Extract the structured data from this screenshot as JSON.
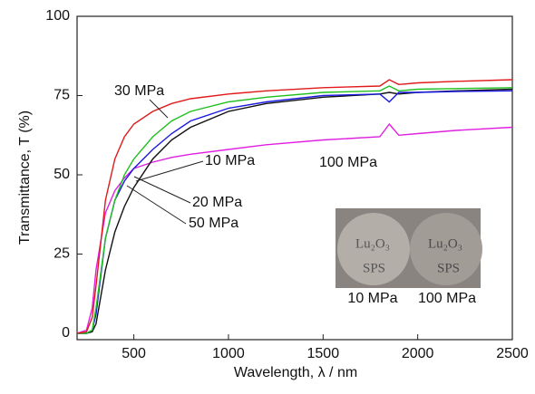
{
  "chart_data": {
    "type": "line",
    "xlabel": "Wavelength, λ / nm",
    "ylabel": "Transmittance, T (%)",
    "x": [
      200,
      250,
      280,
      300,
      350,
      400,
      450,
      500,
      600,
      700,
      800,
      1000,
      1200,
      1500,
      1800,
      1850,
      1900,
      2000,
      2200,
      2500
    ],
    "series": [
      {
        "name": "100 MPa",
        "color": "#e020e0",
        "values": [
          0,
          1,
          8,
          20,
          38,
          45,
          49,
          52,
          54,
          55.5,
          56.5,
          58,
          59.5,
          61,
          62,
          66,
          62.5,
          63,
          64,
          65
        ]
      },
      {
        "name": "50 MPa",
        "color": "#111111",
        "values": [
          0,
          0,
          0.5,
          3,
          20,
          32,
          40,
          46,
          55,
          61,
          65,
          70,
          72.5,
          74.5,
          75.5,
          76,
          75.5,
          76,
          76.5,
          77
        ]
      },
      {
        "name": "10 MPa",
        "color": "#1a1ae0",
        "values": [
          0,
          0,
          1,
          6,
          30,
          42,
          48,
          52,
          58,
          63,
          67,
          71,
          73,
          75,
          75.5,
          73,
          76,
          76,
          76.3,
          76.5
        ]
      },
      {
        "name": "20 MPa",
        "color": "#20c020",
        "values": [
          0,
          0,
          1,
          8,
          30,
          42,
          50,
          55,
          62,
          67,
          70,
          73,
          74.5,
          76,
          76.5,
          78,
          76.5,
          77,
          77.2,
          77.5
        ]
      },
      {
        "name": "30 MPa",
        "color": "#e01a1a",
        "values": [
          0,
          0.5,
          5,
          15,
          42,
          55,
          62,
          66,
          70,
          72.5,
          74,
          75.5,
          76.5,
          77.5,
          78,
          80,
          78.5,
          79,
          79.5,
          80
        ]
      }
    ],
    "xlim": [
      200,
      2500
    ],
    "ylim": [
      -2,
      100
    ],
    "xticks": [
      500,
      1000,
      1500,
      2000,
      2500
    ],
    "yticks": [
      0,
      25,
      50,
      75,
      100
    ],
    "grid": false,
    "inset": {
      "sample_texts": [
        "Lu₂O₃",
        "SPS"
      ],
      "labels": [
        "10 MPa",
        "100 MPa"
      ]
    }
  }
}
